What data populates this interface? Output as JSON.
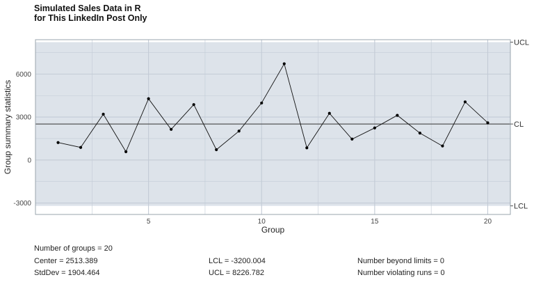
{
  "title_line1": "Simulated Sales Data in R",
  "title_line2": "for This LinkedIn Post Only",
  "chart_data": {
    "type": "line",
    "title": "Simulated Sales Data in R for This LinkedIn Post Only",
    "xlabel": "Group",
    "ylabel": "Group summary statistics",
    "x": [
      1,
      2,
      3,
      4,
      5,
      6,
      7,
      8,
      9,
      10,
      11,
      12,
      13,
      14,
      15,
      16,
      17,
      18,
      19,
      20
    ],
    "series": [
      {
        "values": [
          1220,
          880,
          3200,
          580,
          4280,
          2140,
          3870,
          720,
          2020,
          3980,
          6720,
          850,
          3260,
          1460,
          2240,
          3120,
          1880,
          980,
          4060,
          2600
        ]
      }
    ],
    "xlim": [
      0,
      21
    ],
    "ylim": [
      -3800,
      8400
    ],
    "xticks": [
      5,
      10,
      15,
      20
    ],
    "yticks": [
      -3000,
      0,
      3000,
      6000
    ],
    "grid": true,
    "limits": {
      "ucl": 8226.782,
      "cl": 2513.389,
      "lcl": -3200.004
    },
    "limit_labels": {
      "ucl": "UCL",
      "cl": "CL",
      "lcl": "LCL"
    },
    "colors": {
      "panel": "#dde3ea",
      "band_outside": "#ffffff",
      "grid": "#c3cbd6",
      "line": "#111111",
      "point": "#000000",
      "frame": "#9aa4ae"
    }
  },
  "stats": {
    "groups": "Number of groups = 20",
    "center": "Center = 2513.389",
    "stddev": "StdDev = 1904.464",
    "lcl": "LCL = -3200.004",
    "ucl": "UCL = 8226.782",
    "beyond": "Number beyond limits = 0",
    "violating": "Number violating runs = 0"
  }
}
